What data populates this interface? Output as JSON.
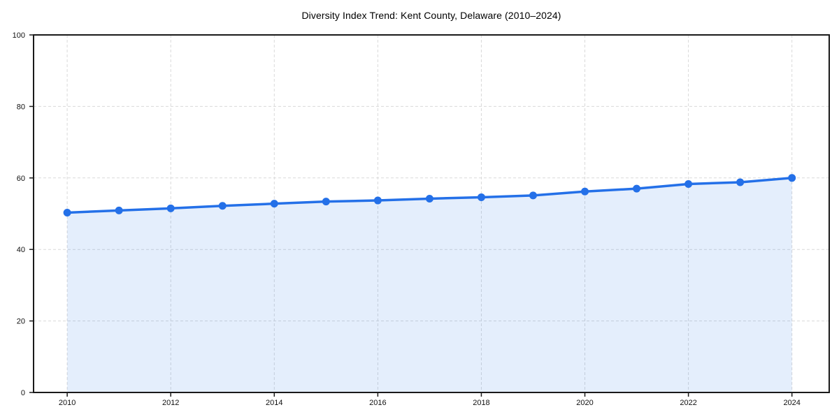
{
  "chart_data": {
    "type": "line",
    "title": "Diversity Index Trend: Kent County, Delaware (2010–2024)",
    "xlabel": "",
    "ylabel": "",
    "x": [
      2010,
      2011,
      2012,
      2013,
      2014,
      2015,
      2016,
      2017,
      2018,
      2019,
      2020,
      2021,
      2022,
      2023,
      2024
    ],
    "values": [
      50.3,
      50.9,
      51.5,
      52.2,
      52.8,
      53.4,
      53.7,
      54.2,
      54.6,
      55.1,
      56.2,
      57.0,
      58.3,
      58.8,
      60.0
    ],
    "x_tick_labels": [
      "2010",
      "2012",
      "2014",
      "2016",
      "2018",
      "2020",
      "2022",
      "2024"
    ],
    "y_tick_labels": [
      "0",
      "20",
      "40",
      "60",
      "80",
      "100"
    ],
    "xlim": [
      2009.35,
      2024.72
    ],
    "ylim": [
      0,
      100
    ],
    "grid": true,
    "grid_style": "dashed",
    "legend": "none",
    "area_fill": true,
    "markers": true,
    "colors": {
      "line": "#2470e8",
      "marker": "#2470e8",
      "fill": "#2470e8",
      "fill_opacity": 0.12,
      "grid": "#d9d9d9",
      "spine": "#1a1a1a",
      "tick_text": "#111111",
      "title_text": "#000000",
      "background": "#ffffff"
    }
  }
}
